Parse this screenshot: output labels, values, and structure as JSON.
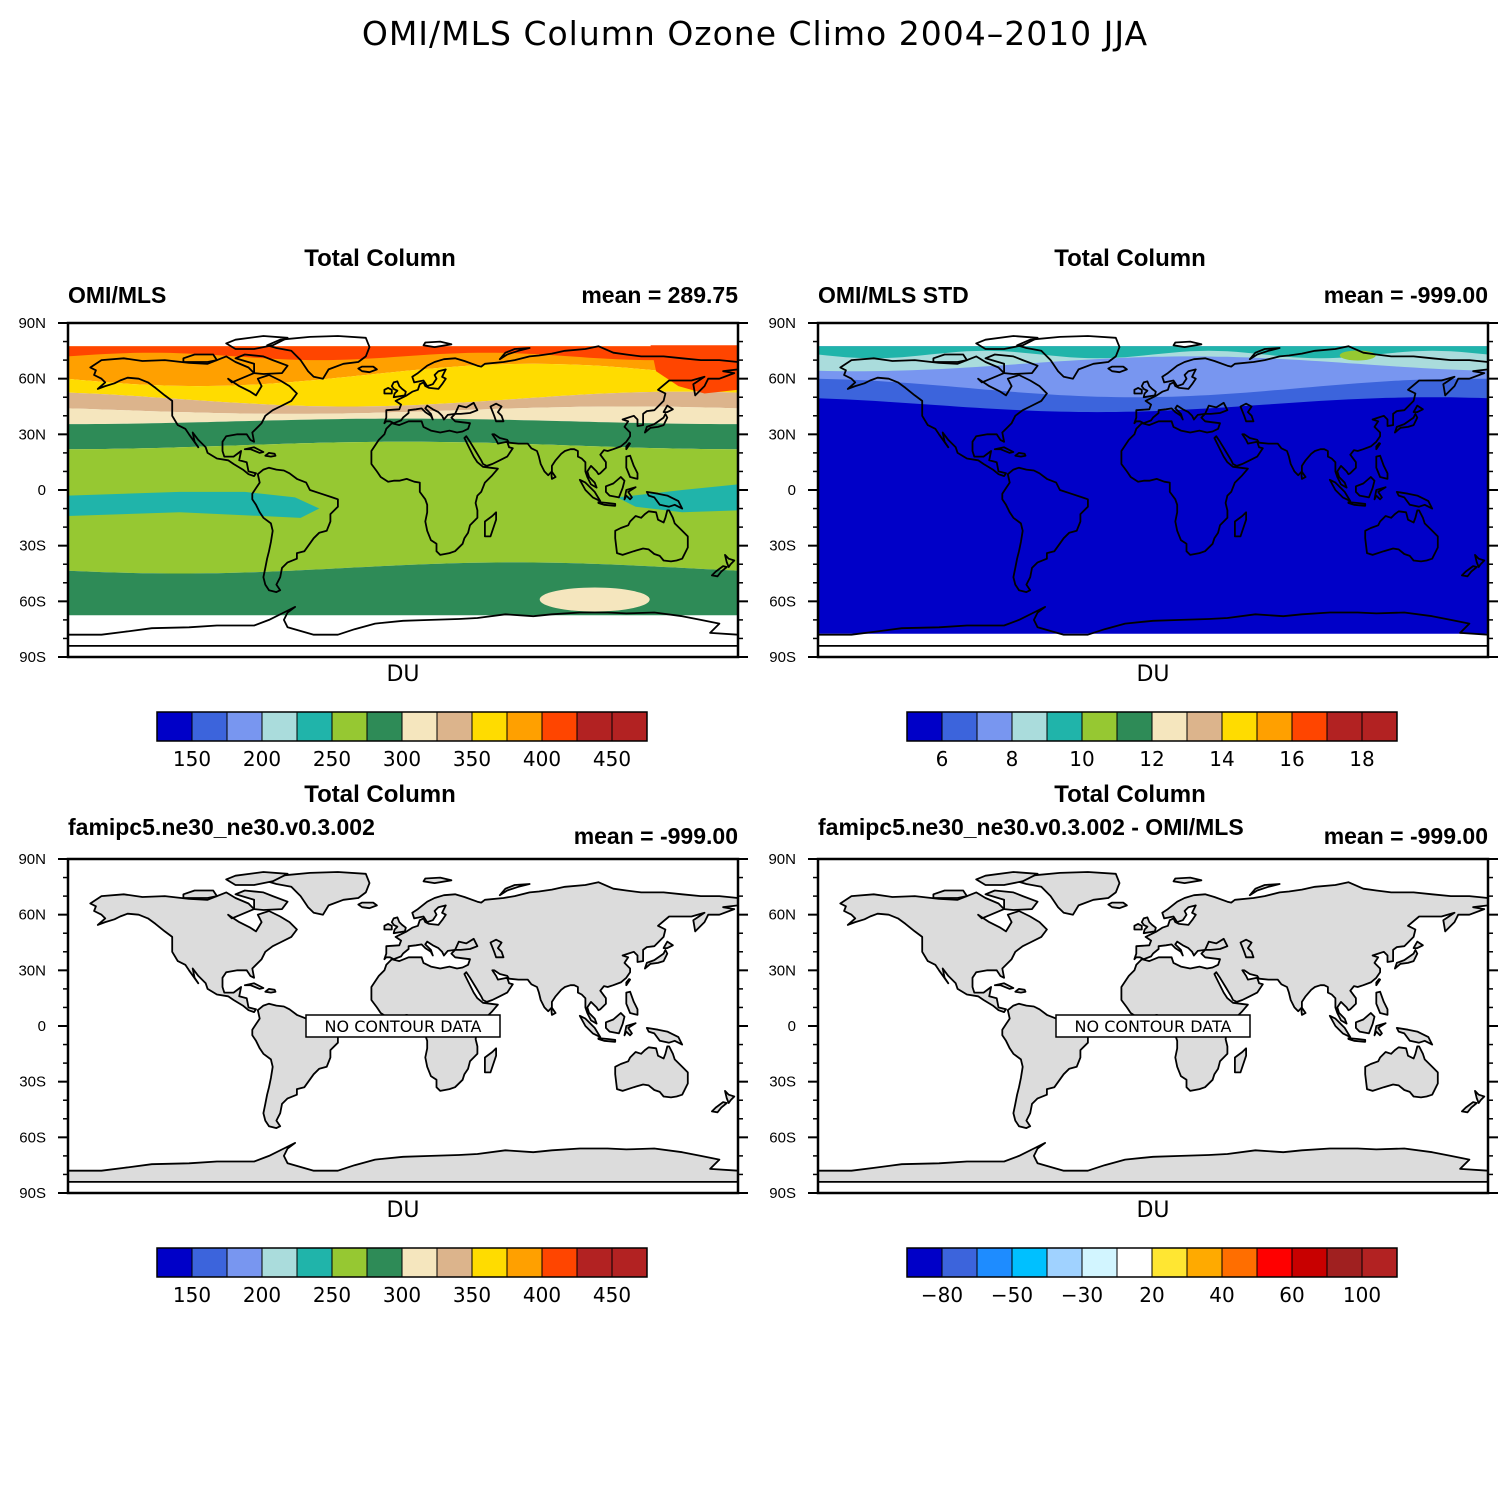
{
  "title": "OMI/MLS Column Ozone Climo 2004–2010 JJA",
  "units": "DU",
  "lat_labels": [
    "90N",
    "60N",
    "30N",
    "0",
    "30S",
    "60S",
    "90S"
  ],
  "colors": {
    "ozone": [
      "#0000c8",
      "#3c64dc",
      "#7896f0",
      "#aadcdc",
      "#20b4aa",
      "#96c832",
      "#2e8b57",
      "#f5e6be",
      "#dcb48c",
      "#ffdc00",
      "#ffa000",
      "#ff4500",
      "#b22222",
      "#b22222"
    ],
    "diff": [
      "#0000c8",
      "#3c64dc",
      "#1e8cff",
      "#00c0ff",
      "#a0d2ff",
      "#d2f5ff",
      "#ffffff",
      "#ffe632",
      "#ffaa00",
      "#ff6e00",
      "#ff0000",
      "#c80000",
      "#a02020",
      "#b22222"
    ],
    "land": "#dcdcdc"
  },
  "panels": [
    {
      "title": "Total Column",
      "left_label": "OMI/MLS",
      "right_label": "mean = 289.75",
      "no_data_text": "",
      "colorbar_labels": [
        "150",
        "200",
        "250",
        "300",
        "350",
        "400",
        "450"
      ]
    },
    {
      "title": "Total Column",
      "left_label": "OMI/MLS STD",
      "right_label": "mean = -999.00",
      "no_data_text": "",
      "colorbar_labels": [
        "6",
        "8",
        "10",
        "12",
        "14",
        "16",
        "18"
      ]
    },
    {
      "title": "Total Column",
      "left_label": "famipc5.ne30_ne30.v0.3.002",
      "right_label": "mean = -999.00",
      "no_data_text": "NO CONTOUR DATA",
      "colorbar_labels": [
        "150",
        "200",
        "250",
        "300",
        "350",
        "400",
        "450"
      ]
    },
    {
      "title": "Total Column",
      "left_label": "famipc5.ne30_ne30.v0.3.002 - OMI/MLS",
      "right_label": "mean = -999.00",
      "no_data_text": "NO CONTOUR DATA",
      "colorbar_labels": [
        "−80",
        "−50",
        "−30",
        "20",
        "40",
        "60",
        "100"
      ]
    }
  ]
}
